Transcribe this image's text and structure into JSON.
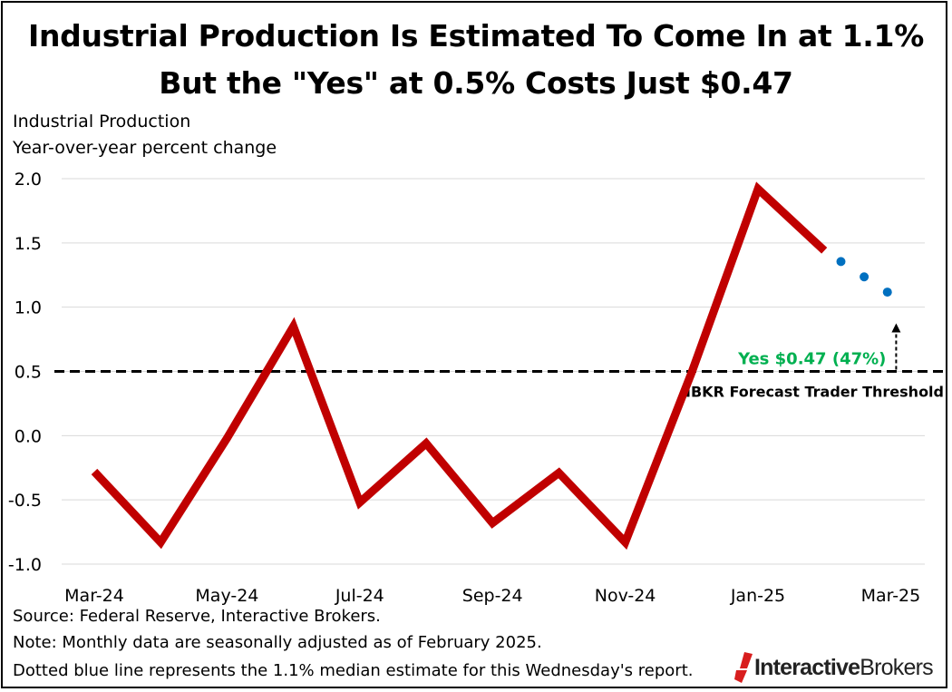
{
  "title_line1": "Industrial Production Is Estimated To Come In at 1.1%",
  "title_line2": "But the \"Yes\" at 0.5% Costs Just $0.47",
  "ylabel_line1": "Industrial Production",
  "ylabel_line2": "Year-over-year percent change",
  "notes": {
    "source": "Source: Federal Reserve, Interactive Brokers.",
    "note": "Note: Monthly data are seasonally adjusted as of February 2025.",
    "dotted": "Dotted blue line represents the 1.1% median estimate for this Wednesday's report."
  },
  "logo": {
    "part1": "Interactive",
    "part2": "Brokers"
  },
  "chart_data": {
    "type": "line",
    "y_ticks": [
      "2.0",
      "1.5",
      "1.0",
      "0.5",
      "0.0",
      "-0.5",
      "-1.0"
    ],
    "y_tick_values": [
      2.0,
      1.5,
      1.0,
      0.5,
      0.0,
      -0.5,
      -1.0
    ],
    "ylim": [
      -1.0,
      2.0
    ],
    "x_tick_labels": [
      "Mar-24",
      "May-24",
      "Jul-24",
      "Sep-24",
      "Nov-24",
      "Jan-25",
      "Mar-25"
    ],
    "x_tick_months": [
      0,
      2,
      4,
      6,
      8,
      10,
      12
    ],
    "grid": true,
    "series": [
      {
        "months": [
          "2024-03",
          "2024-04",
          "2024-05",
          "2024-06",
          "2024-07",
          "2024-08",
          "2024-09",
          "2024-10",
          "2024-11",
          "2024-12",
          "2025-01",
          "2025-02"
        ],
        "values": [
          -0.28,
          -0.83,
          -0.02,
          0.85,
          -0.52,
          -0.06,
          -0.68,
          -0.29,
          -0.83,
          0.49,
          1.92,
          1.44
        ],
        "color": "#C00000",
        "style": "solid"
      },
      {
        "months": [
          "2025-02",
          "2025-03"
        ],
        "values": [
          1.44,
          1.1
        ],
        "color": "#0070C0",
        "style": "dotted"
      }
    ],
    "threshold": {
      "value": 0.5,
      "label": "IBKR Forecast Trader Threshold",
      "color": "#000000"
    },
    "annotation": {
      "text": "Yes $0.47 (47%)",
      "color": "#00B050"
    }
  }
}
